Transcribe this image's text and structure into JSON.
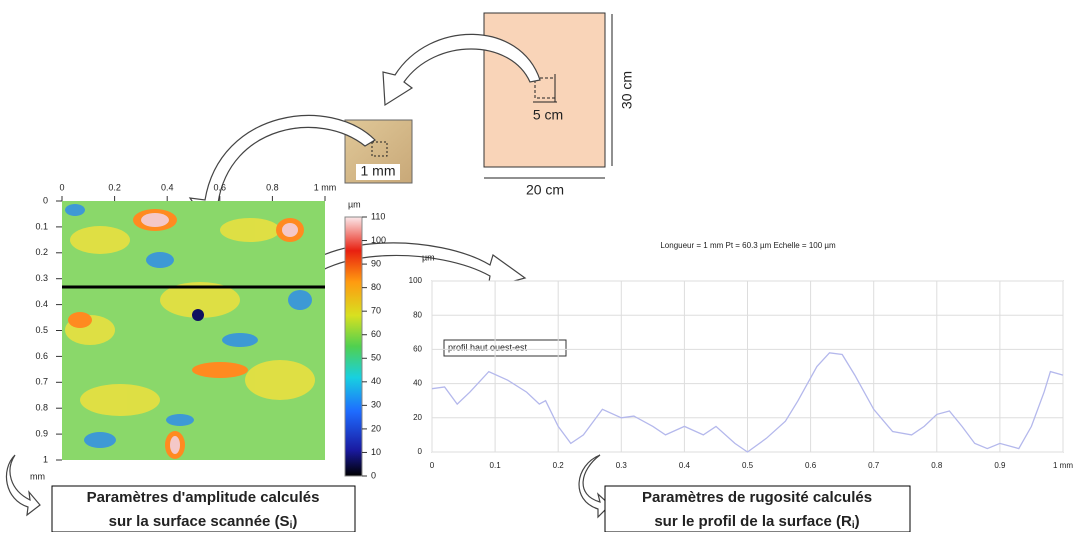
{
  "sheet": {
    "width_label": "20 cm",
    "height_label": "30 cm",
    "crop_label": "5 cm"
  },
  "sample": {
    "label": "1 mm"
  },
  "surface_map": {
    "xlim": [
      0,
      1
    ],
    "ylim": [
      0,
      1
    ],
    "xticks": [
      0,
      0.2,
      0.4,
      0.6,
      0.8,
      {
        "value": 1,
        "label": "1 mm"
      }
    ],
    "yticks": [
      0,
      0.1,
      0.2,
      0.3,
      0.4,
      0.5,
      0.6,
      0.7,
      0.8,
      0.9,
      1
    ],
    "y_unit": "mm",
    "colorbar": {
      "unit": "µm",
      "lim": [
        0,
        110
      ],
      "ticks": [
        0,
        10,
        20,
        30,
        40,
        50,
        60,
        70,
        80,
        90,
        100,
        110
      ]
    }
  },
  "profile": {
    "type": "line",
    "title": "Longueur = 1 mm  Pt = 60.3 µm  Echelle = 100 µm",
    "y_unit": "µm",
    "annotation": "profil haut ouest-est",
    "color": "#b4b8ec",
    "x": [
      0,
      0.02,
      0.04,
      0.06,
      0.09,
      0.12,
      0.15,
      0.17,
      0.18,
      0.2,
      0.22,
      0.24,
      0.27,
      0.3,
      0.32,
      0.35,
      0.37,
      0.4,
      0.43,
      0.45,
      0.48,
      0.5,
      0.53,
      0.56,
      0.58,
      0.61,
      0.63,
      0.65,
      0.67,
      0.7,
      0.73,
      0.76,
      0.78,
      0.8,
      0.82,
      0.84,
      0.86,
      0.88,
      0.9,
      0.93,
      0.95,
      0.97,
      0.98,
      1
    ],
    "values": [
      37,
      38,
      28,
      35,
      47,
      42,
      35,
      28,
      30,
      15,
      5,
      10,
      25,
      20,
      21,
      15,
      10,
      15,
      10,
      15,
      5,
      0,
      8,
      18,
      30,
      50,
      58,
      57,
      45,
      25,
      12,
      10,
      15,
      22,
      24,
      15,
      5,
      2,
      5,
      2,
      15,
      35,
      47,
      45
    ],
    "xlim": [
      0,
      1
    ],
    "ylim": [
      0,
      100
    ],
    "xticks": [
      0,
      0.1,
      0.2,
      0.3,
      0.4,
      0.5,
      0.6,
      0.7,
      0.8,
      0.9,
      {
        "value": 1,
        "label": "1 mm"
      }
    ],
    "yticks": [
      0,
      20,
      40,
      60,
      80,
      100
    ],
    "grid": true
  },
  "captions": [
    {
      "line1": "Paramètres d'amplitude calculés",
      "line2": "sur la surface scannée (S",
      "sub": "i",
      "end": ")"
    },
    {
      "line1": "Paramètres de rugosité calculés",
      "line2": "sur le profil de la surface (R",
      "sub": "i",
      "end": ")"
    }
  ]
}
